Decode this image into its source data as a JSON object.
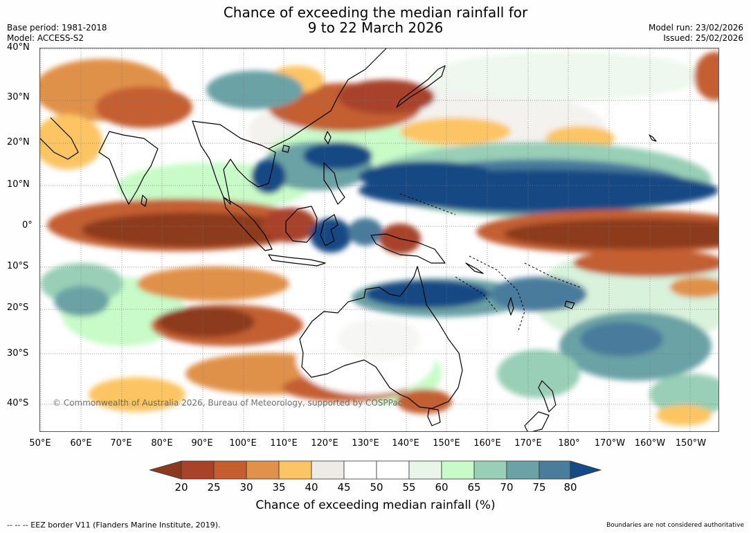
{
  "title": {
    "line1": "Chance of exceeding the median rainfall for",
    "line2": "9 to 22 March 2026"
  },
  "meta": {
    "base_period": "Base period: 1981-2018",
    "model": "Model: ACCESS-S2",
    "model_run": "Model run: 23/02/2026",
    "issued": "Issued: 25/02/2026"
  },
  "axes": {
    "lat_labels": [
      "40°N",
      "30°N",
      "20°N",
      "10°N",
      "0°",
      "10°S",
      "20°S",
      "30°S",
      "40°S"
    ],
    "lon_labels": [
      "50°E",
      "60°E",
      "70°E",
      "80°E",
      "90°E",
      "100°E",
      "110°E",
      "120°E",
      "130°E",
      "140°E",
      "150°E",
      "160°E",
      "170°E",
      "180°",
      "170°W",
      "160°W",
      "150°W"
    ]
  },
  "colorbar": {
    "title": "Chance of exceeding median rainfall (%)",
    "ticks": [
      "20",
      "25",
      "30",
      "35",
      "40",
      "45",
      "50",
      "55",
      "60",
      "65",
      "70",
      "75",
      "80"
    ],
    "colors": {
      "below20": "#8c3a1f",
      "b20_25": "#a8432a",
      "b25_30": "#c45e30",
      "b30_35": "#e0914a",
      "b35_40": "#fcc464",
      "b40_45": "#ecebe6",
      "b45_50": "#ffffff",
      "b50_55": "#ffffff",
      "b55_60": "#e8f5e8",
      "b60_65": "#c8fbc8",
      "b65_70": "#98cfb6",
      "b70_75": "#6aa2a6",
      "b75_80": "#4a7c9c",
      "above80": "#164a84"
    }
  },
  "copyright": "© Commonwealth of Australia 2026, Bureau of Meteorology, supported by COSPPac",
  "footer": {
    "eez_note": "--  --  -- EEZ border V11 (Flanders Marine Institute, 2019).",
    "boundaries_note": "Boundaries are not considered authoritative"
  }
}
